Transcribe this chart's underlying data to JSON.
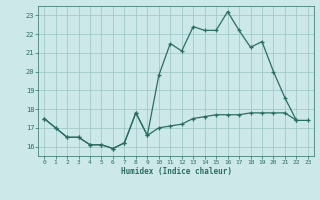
{
  "xlabel": "Humidex (Indice chaleur)",
  "x": [
    0,
    1,
    2,
    3,
    4,
    5,
    6,
    7,
    8,
    9,
    10,
    11,
    12,
    13,
    14,
    15,
    16,
    17,
    18,
    19,
    20,
    21,
    22,
    23
  ],
  "line1_y": [
    17.5,
    17.0,
    16.5,
    16.5,
    16.1,
    16.1,
    15.9,
    16.2,
    17.8,
    16.6,
    19.8,
    21.5,
    21.1,
    22.4,
    22.2,
    22.2,
    23.2,
    22.2,
    21.3,
    21.6,
    20.0,
    18.6,
    17.4,
    null
  ],
  "line2_y": [
    17.5,
    17.0,
    16.5,
    16.5,
    16.1,
    16.1,
    15.9,
    16.2,
    17.8,
    16.6,
    17.0,
    17.1,
    17.2,
    17.5,
    17.6,
    17.7,
    17.7,
    17.7,
    17.8,
    17.8,
    17.8,
    17.8,
    17.4,
    17.4
  ],
  "ylim": [
    15.5,
    23.5
  ],
  "xlim": [
    -0.5,
    23.5
  ],
  "yticks": [
    16,
    17,
    18,
    19,
    20,
    21,
    22,
    23
  ],
  "xticks": [
    0,
    1,
    2,
    3,
    4,
    5,
    6,
    7,
    8,
    9,
    10,
    11,
    12,
    13,
    14,
    15,
    16,
    17,
    18,
    19,
    20,
    21,
    22,
    23
  ],
  "line_color": "#2a6e63",
  "bg_color": "#cce8e8",
  "grid_color": "#99c4c4",
  "fig_bg": "#cce8e8"
}
